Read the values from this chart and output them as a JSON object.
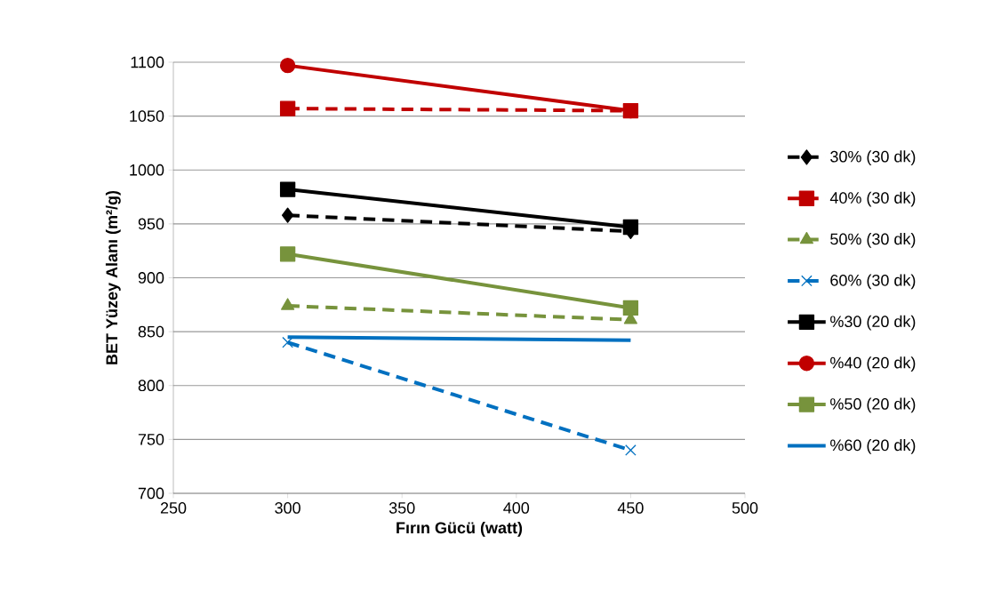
{
  "chart_data": {
    "type": "line",
    "xlabel": "Fırın Gücü (watt)",
    "ylabel": "BET Yüzey Alanı (m²/g)",
    "x": [
      300,
      450
    ],
    "xlim": [
      250,
      500
    ],
    "xticks": [
      250,
      300,
      350,
      400,
      450,
      500
    ],
    "ylim": [
      700,
      1100
    ],
    "yticks": [
      700,
      750,
      800,
      850,
      900,
      950,
      1000,
      1050,
      1100
    ],
    "grid": "y",
    "legend": "right",
    "series": [
      {
        "name": "30% (30 dk)",
        "color": "#000000",
        "marker": "diamond",
        "line_style": "dashed",
        "values": [
          958,
          943
        ]
      },
      {
        "name": "40% (30 dk)",
        "color": "#c00000",
        "marker": "square",
        "line_style": "dashed",
        "values": [
          1057,
          1055
        ]
      },
      {
        "name": "50% (30 dk)",
        "color": "#77933c",
        "marker": "triangle",
        "line_style": "dashed",
        "values": [
          874,
          861
        ]
      },
      {
        "name": "60% (30 dk)",
        "color": "#0070c0",
        "marker": "cross",
        "line_style": "dashed",
        "values": [
          840,
          740
        ]
      },
      {
        "name": "%30 (20 dk)",
        "color": "#000000",
        "marker": "square",
        "line_style": "solid",
        "values": [
          982,
          947
        ]
      },
      {
        "name": "%40 (20 dk)",
        "color": "#c00000",
        "marker": "circle",
        "line_style": "solid",
        "values": [
          1097,
          1055
        ]
      },
      {
        "name": "%50 (20 dk)",
        "color": "#77933c",
        "marker": "square",
        "line_style": "solid",
        "values": [
          922,
          872
        ]
      },
      {
        "name": "%60 (20 dk)",
        "color": "#0070c0",
        "marker": "none",
        "line_style": "solid",
        "values": [
          845,
          842
        ]
      }
    ]
  }
}
